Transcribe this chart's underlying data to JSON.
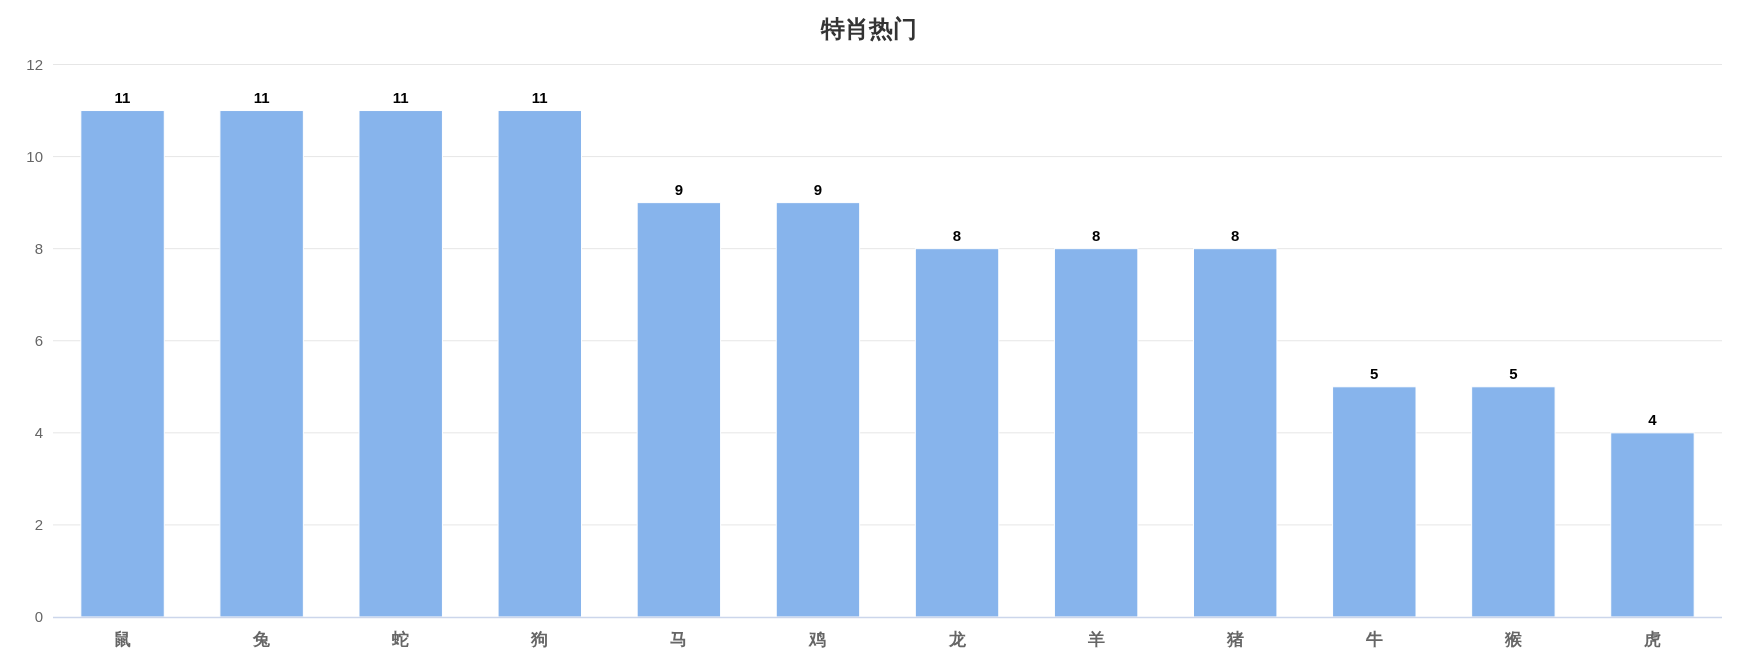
{
  "chart_data": {
    "type": "bar",
    "title": "特肖热门",
    "categories": [
      "鼠",
      "兔",
      "蛇",
      "狗",
      "马",
      "鸡",
      "龙",
      "羊",
      "猪",
      "牛",
      "猴",
      "虎"
    ],
    "values": [
      11,
      11,
      11,
      11,
      9,
      9,
      8,
      8,
      8,
      5,
      5,
      4
    ],
    "color": "#87b4ec",
    "ylim": [
      0,
      12
    ],
    "yticks": [
      0,
      2,
      4,
      6,
      8,
      10,
      12
    ],
    "grid": "y",
    "data_labels": true
  }
}
